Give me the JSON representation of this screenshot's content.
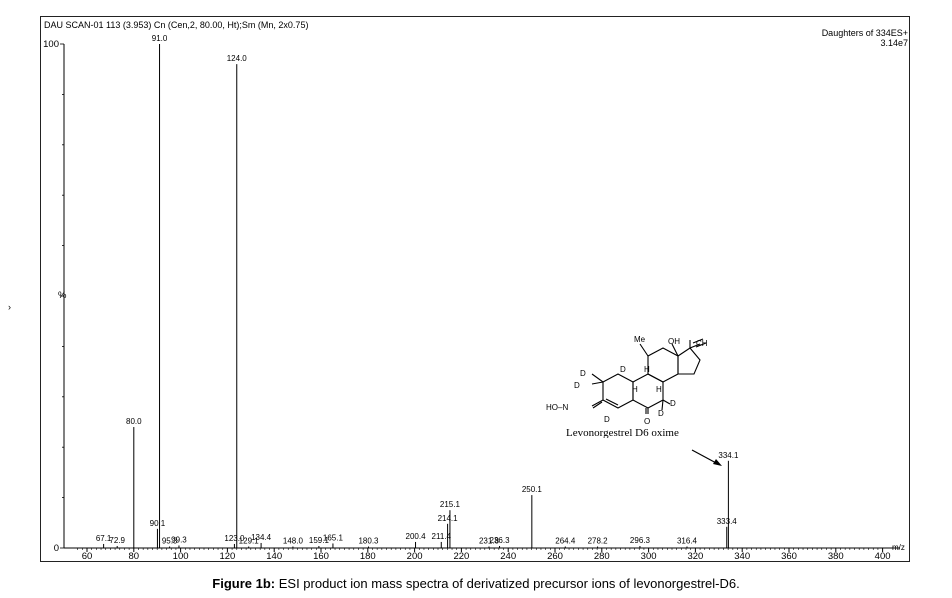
{
  "header": {
    "scan_info": "DAU SCAN-01  113 (3.953) Cn (Cen,2, 80.00, Ht);Sm (Mn, 2x0.75)",
    "daughters": "Daughters of 334ES+",
    "intensity": "3.14e7"
  },
  "y_axis_label": "%",
  "stray_mark": "›",
  "x_unit_label": "m/z",
  "caption": {
    "bold": "Figure 1b:",
    "text": " ESI product ion mass spectra of derivatized precursor ions of levonorgestrel-D6."
  },
  "structure": {
    "name": "Levonorgestrel D6 oxime",
    "labels": {
      "me": "Me",
      "oh": "OH",
      "ch": "CH",
      "hon": "HO–N",
      "d": "D",
      "h": "H",
      "o": "O"
    }
  },
  "chart_data": {
    "type": "bar",
    "title": "",
    "xlabel": "m/z",
    "ylabel": "%",
    "xlim": [
      55,
      400
    ],
    "ylim": [
      0,
      100
    ],
    "x_ticks": [
      60,
      80,
      100,
      120,
      140,
      160,
      180,
      200,
      220,
      240,
      260,
      280,
      300,
      320,
      340,
      360,
      380,
      400
    ],
    "y_ticks": [
      0,
      100
    ],
    "peaks": [
      {
        "mz": 67.1,
        "intensity": 0.8,
        "label": "67.1"
      },
      {
        "mz": 72.9,
        "intensity": 0.4,
        "label": "72.9"
      },
      {
        "mz": 80.0,
        "intensity": 24.0,
        "label": "80.0"
      },
      {
        "mz": 90.1,
        "intensity": 3.8,
        "label": "90.1"
      },
      {
        "mz": 91.0,
        "intensity": 100.0,
        "label": "91.0"
      },
      {
        "mz": 95.3,
        "intensity": 0.3,
        "label": "95.3"
      },
      {
        "mz": 99.3,
        "intensity": 0.5,
        "label": "99.3"
      },
      {
        "mz": 123.0,
        "intensity": 0.8,
        "label": "123.0"
      },
      {
        "mz": 124.0,
        "intensity": 96.0,
        "label": "124.0"
      },
      {
        "mz": 129.1,
        "intensity": 0.3,
        "label": "129.1"
      },
      {
        "mz": 134.4,
        "intensity": 1.0,
        "label": "134.4"
      },
      {
        "mz": 148.0,
        "intensity": 0.3,
        "label": "148.0"
      },
      {
        "mz": 159.1,
        "intensity": 0.4,
        "label": "159.1"
      },
      {
        "mz": 165.1,
        "intensity": 0.9,
        "label": "165.1"
      },
      {
        "mz": 180.3,
        "intensity": 0.3,
        "label": "180.3"
      },
      {
        "mz": 200.4,
        "intensity": 1.2,
        "label": "200.4"
      },
      {
        "mz": 211.4,
        "intensity": 1.2,
        "label": "211.4"
      },
      {
        "mz": 214.1,
        "intensity": 4.8,
        "label": "214.1"
      },
      {
        "mz": 215.1,
        "intensity": 7.5,
        "label": "215.1"
      },
      {
        "mz": 231.8,
        "intensity": 0.3,
        "label": "231.8"
      },
      {
        "mz": 236.3,
        "intensity": 0.4,
        "label": "236.3"
      },
      {
        "mz": 250.1,
        "intensity": 10.5,
        "label": "250.1"
      },
      {
        "mz": 264.4,
        "intensity": 0.3,
        "label": "264.4"
      },
      {
        "mz": 278.2,
        "intensity": 0.3,
        "label": "278.2"
      },
      {
        "mz": 296.3,
        "intensity": 0.4,
        "label": "296.3"
      },
      {
        "mz": 316.4,
        "intensity": 0.3,
        "label": "316.4"
      },
      {
        "mz": 333.4,
        "intensity": 4.2,
        "label": "333.4"
      },
      {
        "mz": 334.1,
        "intensity": 17.3,
        "label": "334.1"
      }
    ]
  }
}
